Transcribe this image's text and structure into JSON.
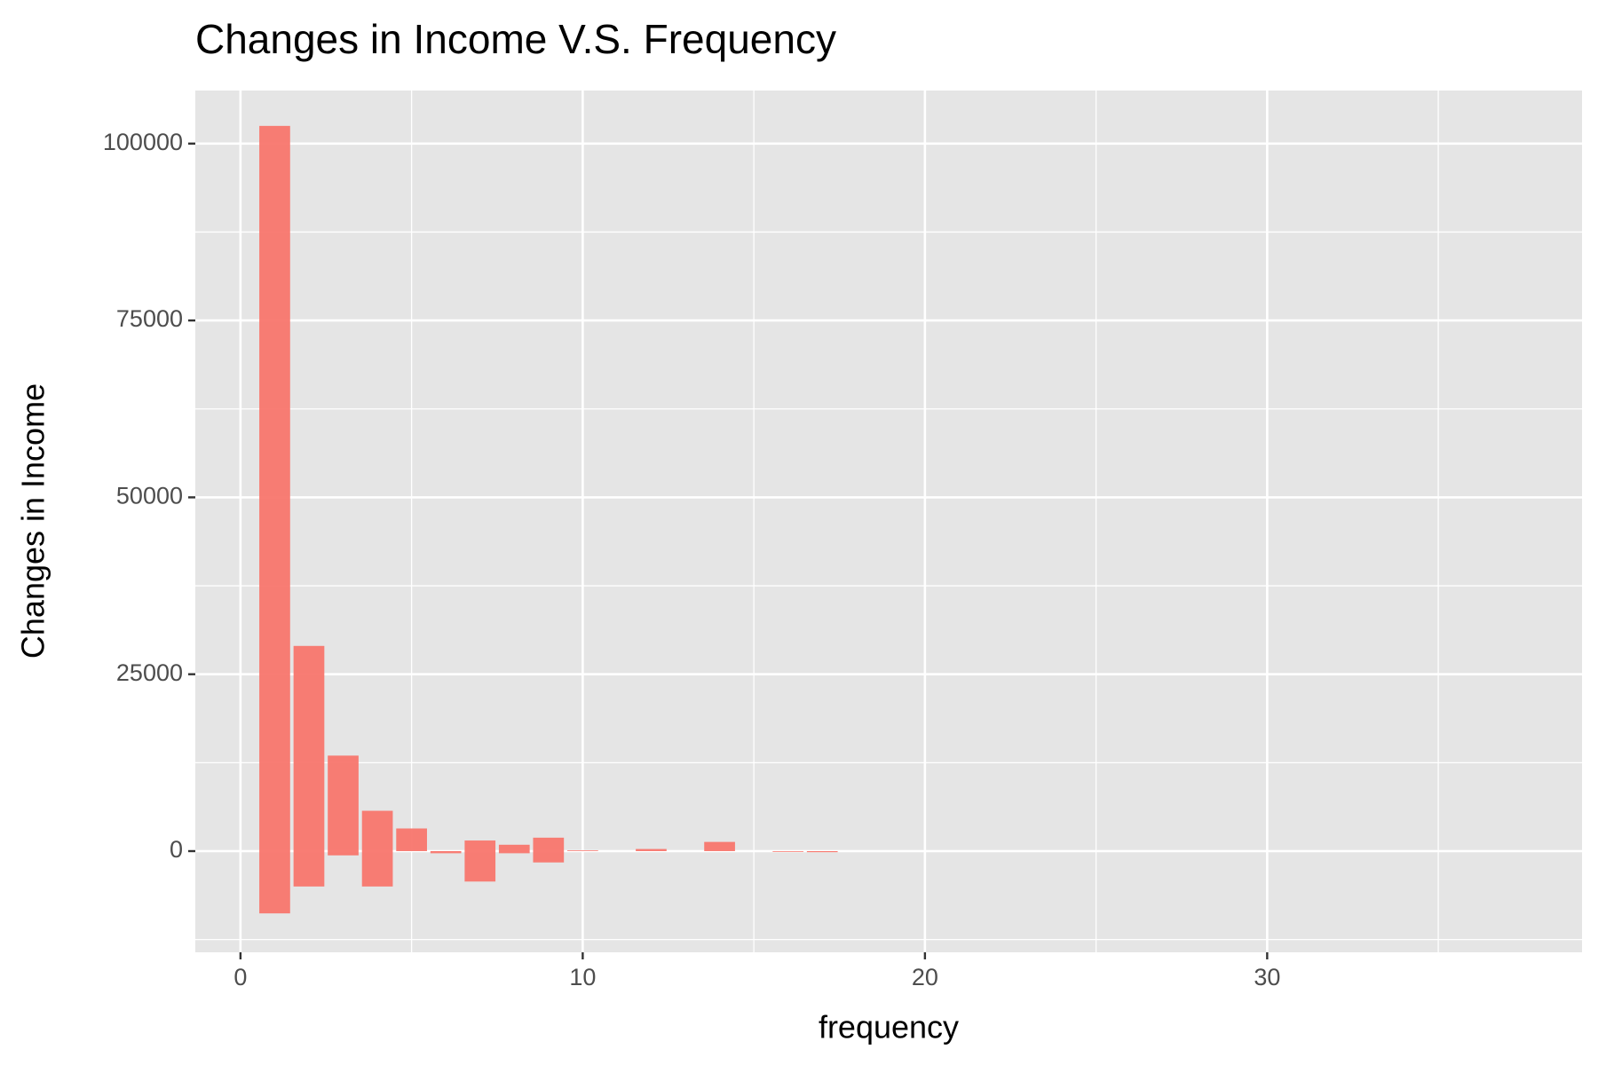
{
  "chart_data": {
    "type": "bar",
    "title": "Changes in Income V.S. Frequency",
    "x_label": "frequency",
    "y_label": "Changes in Income",
    "x": [
      1,
      2,
      3,
      4,
      5,
      6,
      7,
      8,
      9,
      10,
      12,
      14,
      16,
      17
    ],
    "series": [
      {
        "color": "#F8766D",
        "values": [
          102500,
          29000,
          13500,
          5700,
          3200,
          null,
          1500,
          900,
          1900,
          100,
          300,
          1300,
          null,
          null
        ]
      },
      {
        "color": "#F8766D",
        "values": [
          -8800,
          -5000,
          -600,
          -5000,
          null,
          -300,
          -4300,
          -300,
          -1600,
          null,
          null,
          null,
          -100,
          -150
        ]
      }
    ],
    "xlim": [
      -1.32,
      39.2
    ],
    "xticks": [
      0,
      10,
      20,
      30
    ],
    "x_minor_ticks": [
      5,
      15,
      25,
      35
    ],
    "ylim": [
      -14300,
      107500
    ],
    "yticks": [
      0,
      25000,
      50000,
      75000,
      100000
    ],
    "y_minor_ticks": [
      -12500,
      12500,
      37500,
      62500,
      87500
    ],
    "bar_width": 0.9,
    "grid": true
  }
}
